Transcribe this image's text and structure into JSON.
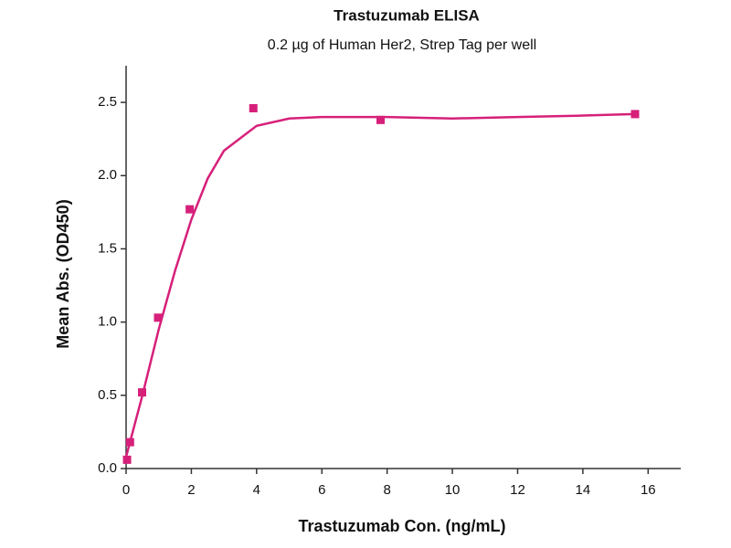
{
  "chart_data": {
    "type": "scatter",
    "title": "Trastuzumab ELISA",
    "subtitle": "0.2 µg of Human Her2, Strep Tag per well",
    "x_label": "Trastuzumab Con. (ng/mL)",
    "y_label": "Mean Abs. (OD450)",
    "xlim": [
      0,
      17
    ],
    "ylim": [
      0,
      2.75
    ],
    "xticks": [
      0,
      2,
      4,
      6,
      8,
      10,
      12,
      14,
      16
    ],
    "yticks": [
      {
        "value": 0,
        "label": "0.0"
      },
      0.5,
      {
        "value": 1,
        "label": "1.0"
      },
      1.5,
      {
        "value": 2,
        "label": "2.0"
      },
      2.5
    ],
    "grid": false,
    "series": [
      {
        "color": "#d6207a",
        "marker": "square",
        "x": [
          0.03,
          0.12,
          0.49,
          0.98,
          1.95,
          3.9,
          7.8,
          15.6
        ],
        "values": [
          0.06,
          0.18,
          0.52,
          1.03,
          1.77,
          2.46,
          2.38,
          2.42
        ]
      },
      {
        "color": "#d6207a",
        "marker": "line",
        "x": [
          0,
          0.5,
          1,
          1.5,
          2,
          2.5,
          3,
          4,
          5,
          6,
          8,
          10,
          12,
          14,
          15.6
        ],
        "values": [
          0.08,
          0.5,
          0.95,
          1.35,
          1.7,
          1.98,
          2.17,
          2.34,
          2.39,
          2.4,
          2.4,
          2.39,
          2.4,
          2.41,
          2.42
        ]
      }
    ]
  }
}
